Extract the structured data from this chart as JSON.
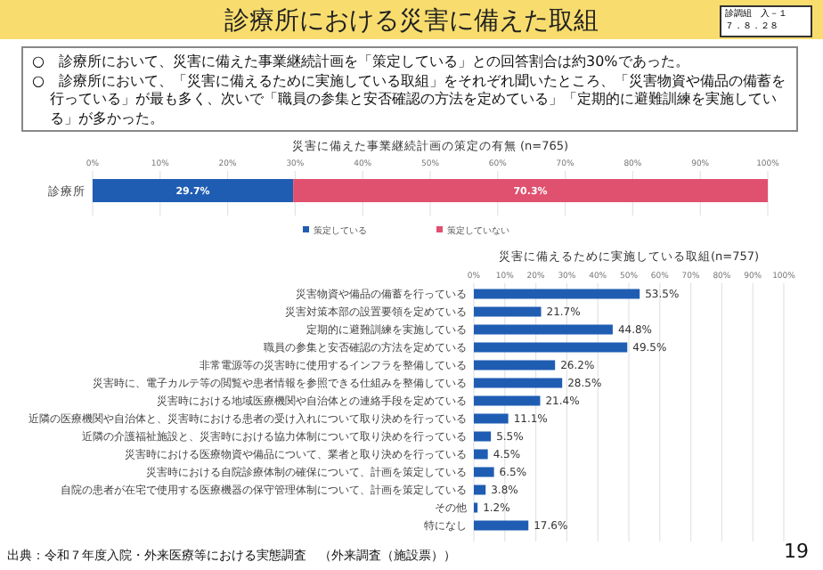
{
  "chart_data": [
    {
      "type": "other",
      "title": "診療所における災害に備えた取組",
      "annotations": [
        "診調組　入－１",
        "７．８．２８",
        "○　診療所において、災害に備えた事業継続計画を「策定している」との回答割合は約30%であった。",
        "○　診療所において、「災害に備えるために実施している取組」をそれぞれ聞いたところ、「災害物資や備品の備蓄を行っている」が最も多く、次いで「職員の参集と安否確認の方法を定めている」「定期的に避難訓練を実施している」が多かった。",
        "出典：令和７年度入院・外来医療等における実態調査　（外来調査（施設票））",
        "19"
      ]
    },
    {
      "type": "bar",
      "title": "災害に備えた事業継続計画の策定の有無 (n=765)",
      "orientation": "horizontal",
      "stacked": true,
      "grid": "x",
      "legend": "bottom",
      "categories": [
        "診療所"
      ],
      "series": [
        {
          "name": "策定している",
          "color": "#1f5db3",
          "values": [
            29.7
          ],
          "value_labels": [
            "29.7%"
          ]
        },
        {
          "name": "策定していない",
          "color": "#e0506f",
          "values": [
            70.3
          ],
          "value_labels": [
            "70.3%"
          ]
        }
      ],
      "xlim": [
        0,
        100
      ],
      "xticks": [
        {
          "value": 0,
          "label": "0%"
        },
        {
          "value": 10,
          "label": "10%"
        },
        {
          "value": 20,
          "label": "20%"
        },
        {
          "value": 30,
          "label": "30%"
        },
        {
          "value": 40,
          "label": "40%"
        },
        {
          "value": 50,
          "label": "50%"
        },
        {
          "value": 60,
          "label": "60%"
        },
        {
          "value": 70,
          "label": "70%"
        },
        {
          "value": 80,
          "label": "80%"
        },
        {
          "value": 90,
          "label": "90%"
        },
        {
          "value": 100,
          "label": "100%"
        }
      ]
    },
    {
      "type": "bar",
      "title": "災害に備えるために実施している取組(n=757)",
      "orientation": "horizontal",
      "grid": "x",
      "color": "#1f5db3",
      "categories": [
        "災害物資や備品の備蓄を行っている",
        "災害対策本部の設置要領を定めている",
        "定期的に避難訓練を実施している",
        "職員の参集と安否確認の方法を定めている",
        "非常電源等の災害時に使用するインフラを整備している",
        "災害時に、電子カルテ等の閲覧や患者情報を参照できる仕組みを整備している",
        "災害時における地域医療機関や自治体との連絡手段を定めている",
        "近隣の医療機関や自治体と、災害時における患者の受け入れについて取り決めを行っている",
        "近隣の介護福祉施設と、災害時における協力体制について取り決めを行っている",
        "災害時における医療物資や備品について、業者と取り決めを行っている",
        "災害時における自院診療体制の確保について、計画を策定している",
        "自院の患者が在宅で使用する医療機器の保守管理体制について、計画を策定している",
        "その他",
        "特になし"
      ],
      "values": [
        53.5,
        21.7,
        44.8,
        49.5,
        26.2,
        28.5,
        21.4,
        11.1,
        5.5,
        4.5,
        6.5,
        3.8,
        1.2,
        17.6
      ],
      "value_labels": [
        "53.5%",
        "21.7%",
        "44.8%",
        "49.5%",
        "26.2%",
        "28.5%",
        "21.4%",
        "11.1%",
        "5.5%",
        "4.5%",
        "6.5%",
        "3.8%",
        "1.2%",
        "17.6%"
      ],
      "xlim": [
        0,
        100
      ],
      "xticks": [
        {
          "value": 0,
          "label": "0%"
        },
        {
          "value": 10,
          "label": "10%"
        },
        {
          "value": 20,
          "label": "20%"
        },
        {
          "value": 30,
          "label": "30%"
        },
        {
          "value": 40,
          "label": "40%"
        },
        {
          "value": 50,
          "label": "50%"
        },
        {
          "value": 60,
          "label": "60%"
        },
        {
          "value": 70,
          "label": "70%"
        },
        {
          "value": 80,
          "label": "80%"
        },
        {
          "value": 90,
          "label": "90%"
        },
        {
          "value": 100,
          "label": "100%"
        }
      ]
    }
  ]
}
